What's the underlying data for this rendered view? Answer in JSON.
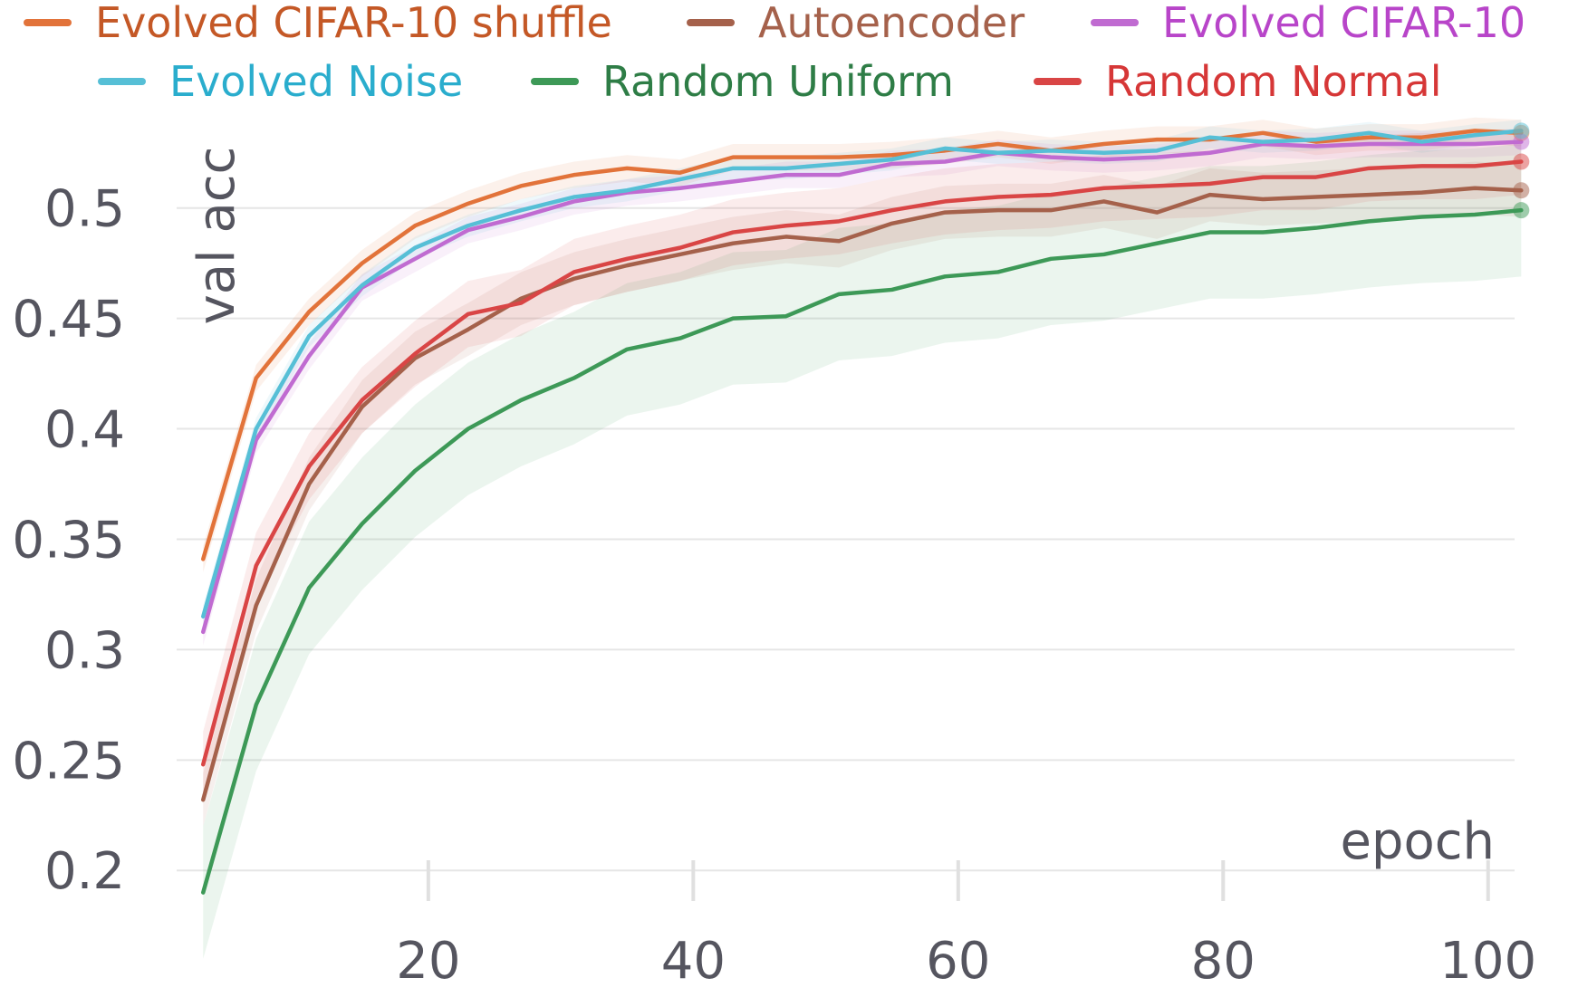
{
  "chart_data": {
    "type": "line",
    "xlabel": "epoch",
    "ylabel": "val acc",
    "xlim": [
      1,
      102
    ],
    "ylim": [
      0.18,
      0.545
    ],
    "xticks": [
      20,
      40,
      60,
      80,
      100
    ],
    "xtick_labels": [
      "20",
      "40",
      "60",
      "80",
      "100"
    ],
    "yticks": [
      0.2,
      0.25,
      0.3,
      0.35,
      0.4,
      0.45,
      0.5
    ],
    "ytick_labels": [
      "0.2",
      "0.25",
      "0.3",
      "0.35",
      "0.4",
      "0.45",
      "0.5"
    ],
    "grid": "horizontal",
    "legend_position": "top",
    "x": [
      3,
      7,
      11,
      15,
      19,
      23,
      27,
      31,
      35,
      39,
      43,
      47,
      51,
      55,
      59,
      63,
      67,
      71,
      75,
      79,
      83,
      87,
      91,
      95,
      99,
      103
    ],
    "series": [
      {
        "name": "Evolved CIFAR-10 shuffle",
        "color": "#e2733a",
        "legend_text_color": "#c45826",
        "values": [
          0.341,
          0.423,
          0.453,
          0.475,
          0.492,
          0.502,
          0.51,
          0.515,
          0.518,
          0.516,
          0.523,
          0.523,
          0.523,
          0.524,
          0.526,
          0.529,
          0.526,
          0.529,
          0.531,
          0.531,
          0.534,
          0.53,
          0.532,
          0.532,
          0.535,
          0.534
        ],
        "spread": 0.006
      },
      {
        "name": "Autoencoder",
        "color": "#a5614b",
        "legend_text_color": "#a5614b",
        "values": [
          0.232,
          0.32,
          0.375,
          0.41,
          0.432,
          0.445,
          0.459,
          0.468,
          0.474,
          0.479,
          0.484,
          0.487,
          0.485,
          0.493,
          0.498,
          0.499,
          0.499,
          0.503,
          0.498,
          0.506,
          0.504,
          0.505,
          0.506,
          0.507,
          0.509,
          0.508
        ],
        "spread": 0.012
      },
      {
        "name": "Evolved CIFAR-10",
        "color": "#c06bd1",
        "legend_text_color": "#b845c9",
        "values": [
          0.308,
          0.395,
          0.433,
          0.464,
          0.477,
          0.49,
          0.496,
          0.503,
          0.507,
          0.509,
          0.512,
          0.515,
          0.515,
          0.52,
          0.521,
          0.525,
          0.523,
          0.522,
          0.523,
          0.525,
          0.529,
          0.528,
          0.529,
          0.529,
          0.529,
          0.53
        ],
        "spread": 0.006
      },
      {
        "name": "Evolved Noise",
        "color": "#56bfd6",
        "legend_text_color": "#2aadcd",
        "values": [
          0.315,
          0.4,
          0.442,
          0.465,
          0.482,
          0.492,
          0.499,
          0.505,
          0.508,
          0.513,
          0.518,
          0.518,
          0.52,
          0.522,
          0.527,
          0.525,
          0.526,
          0.525,
          0.526,
          0.532,
          0.53,
          0.531,
          0.534,
          0.53,
          0.533,
          0.535
        ],
        "spread": 0.005
      },
      {
        "name": "Random Uniform",
        "color": "#3d9957",
        "legend_text_color": "#2e7d46",
        "values": [
          0.19,
          0.275,
          0.328,
          0.357,
          0.381,
          0.4,
          0.413,
          0.423,
          0.436,
          0.441,
          0.45,
          0.451,
          0.461,
          0.463,
          0.469,
          0.471,
          0.477,
          0.479,
          0.484,
          0.489,
          0.489,
          0.491,
          0.494,
          0.496,
          0.497,
          0.499
        ],
        "spread": 0.03
      },
      {
        "name": "Random Normal",
        "color": "#d94545",
        "legend_text_color": "#d63737",
        "values": [
          0.248,
          0.338,
          0.383,
          0.413,
          0.434,
          0.452,
          0.457,
          0.471,
          0.477,
          0.482,
          0.489,
          0.492,
          0.494,
          0.499,
          0.503,
          0.505,
          0.506,
          0.509,
          0.51,
          0.511,
          0.514,
          0.514,
          0.518,
          0.519,
          0.519,
          0.521
        ],
        "spread": 0.015
      }
    ]
  }
}
